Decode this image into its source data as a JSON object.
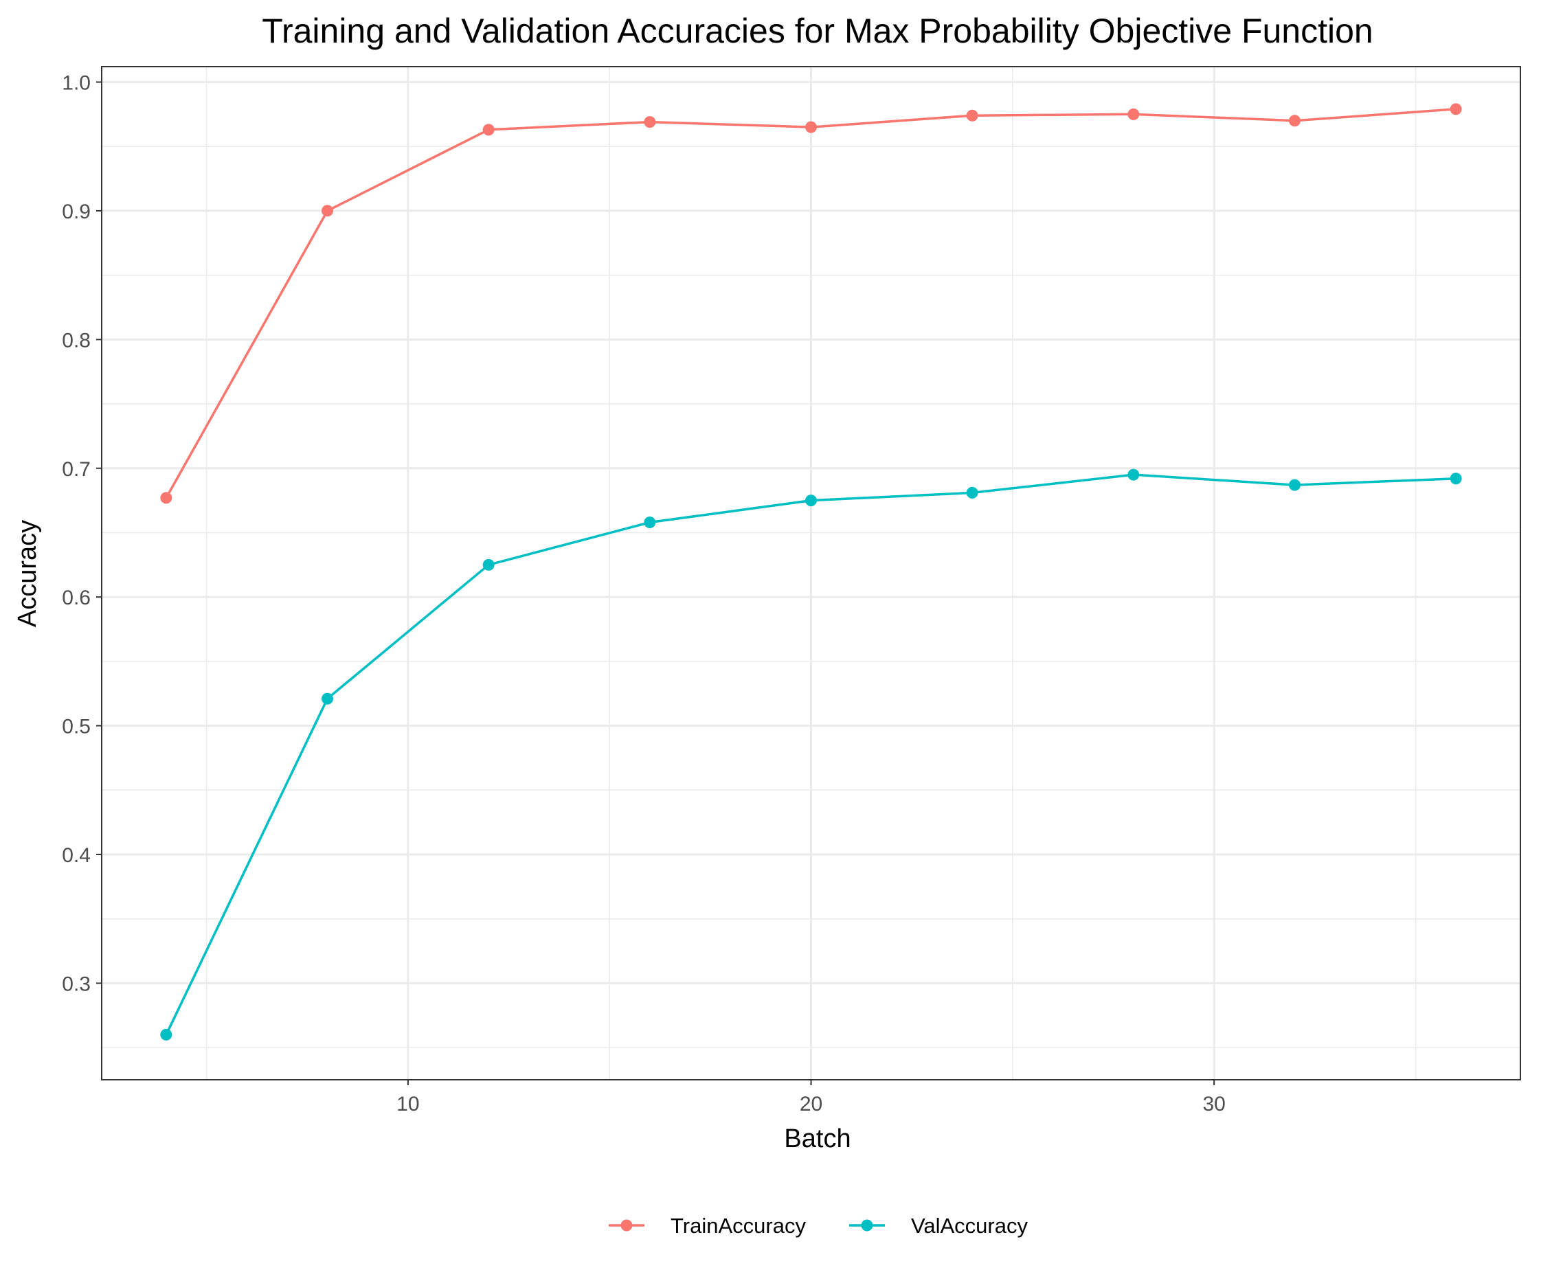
{
  "chart_data": {
    "type": "line",
    "title": "Training and Validation Accuracies for Max Probability Objective Function",
    "xlabel": "Batch",
    "ylabel": "Accuracy",
    "x": [
      4,
      8,
      12,
      16,
      20,
      24,
      28,
      32,
      36
    ],
    "xlim": [
      2.4,
      37.6
    ],
    "ylim": [
      0.225,
      1.012
    ],
    "x_ticks": [
      10,
      20,
      30
    ],
    "x_tick_labels": [
      "10",
      "20",
      "30"
    ],
    "y_ticks": [
      0.3,
      0.4,
      0.5,
      0.6,
      0.7,
      0.8,
      0.9,
      1.0
    ],
    "y_tick_labels": [
      "0.3",
      "0.4",
      "0.5",
      "0.6",
      "0.7",
      "0.8",
      "0.9",
      "1.0"
    ],
    "grid": true,
    "legend_position": "bottom",
    "series": [
      {
        "name": "TrainAccuracy",
        "color": "#F8766D",
        "values": [
          0.677,
          0.9,
          0.963,
          0.969,
          0.965,
          0.974,
          0.975,
          0.97,
          0.979
        ]
      },
      {
        "name": "ValAccuracy",
        "color": "#00BFC4",
        "values": [
          0.26,
          0.521,
          0.625,
          0.658,
          0.675,
          0.681,
          0.695,
          0.687,
          0.692
        ]
      }
    ]
  }
}
